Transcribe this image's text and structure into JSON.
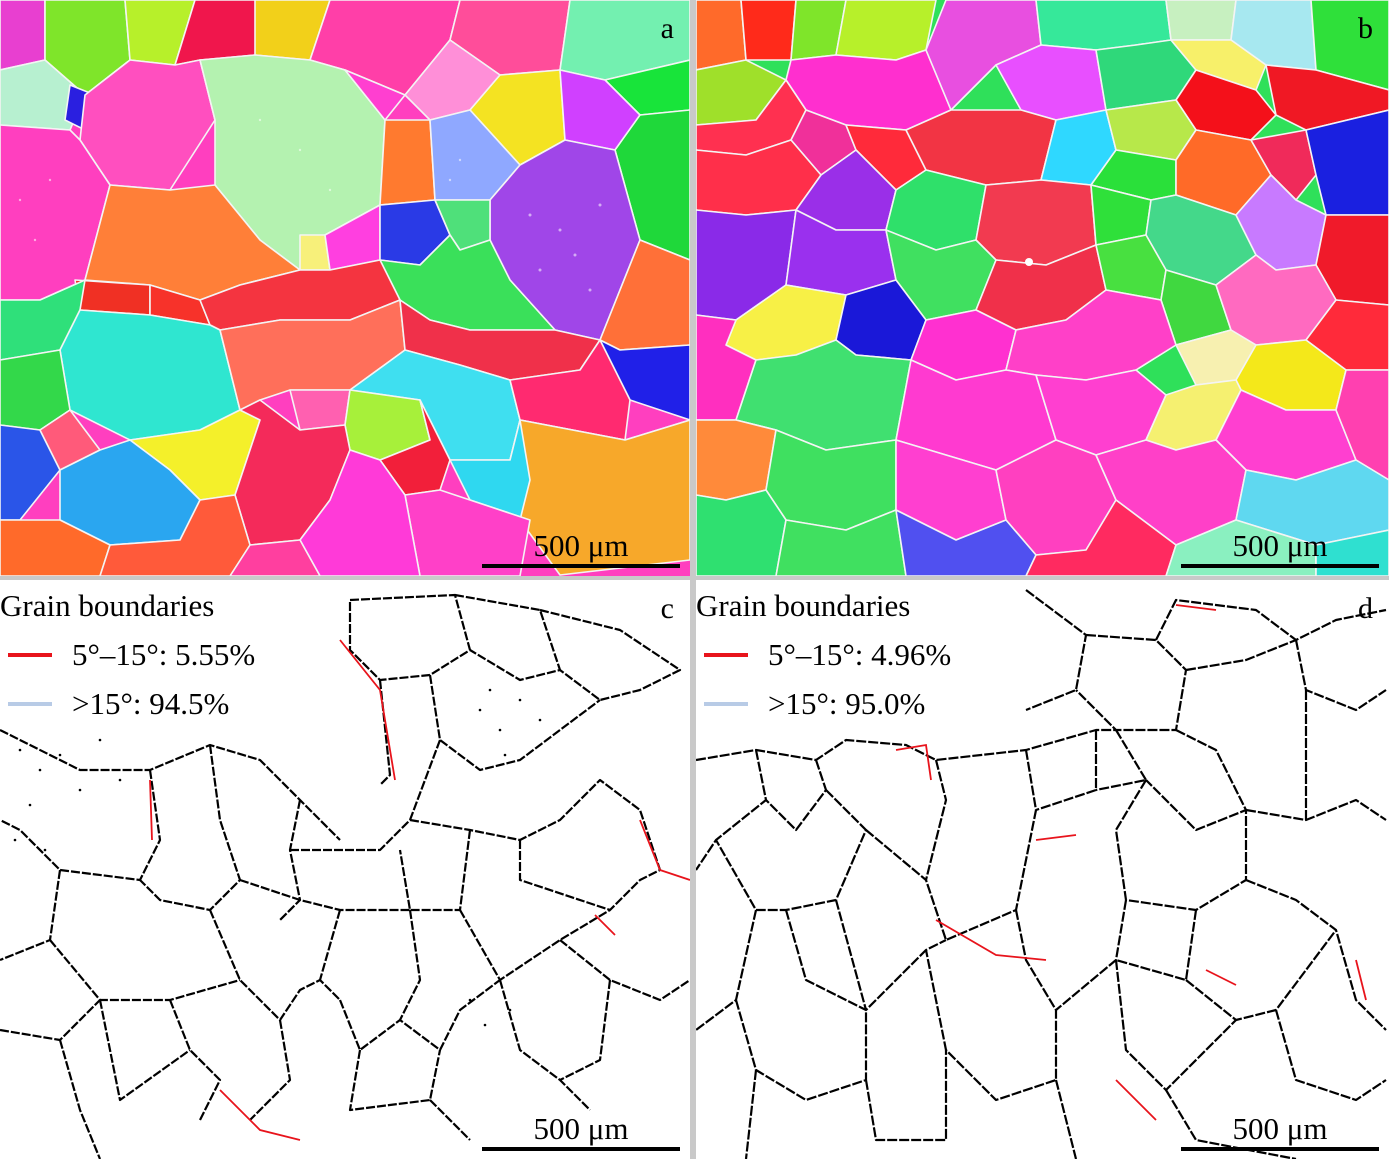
{
  "panels": {
    "a": {
      "letter": "a",
      "scale_bar": "500 μm"
    },
    "b": {
      "letter": "b",
      "scale_bar": "500 μm"
    },
    "c": {
      "letter": "c",
      "scale_bar": "500 μm",
      "legend": {
        "title": "Grain boundaries",
        "low_angle": "5°–15°: 5.55%",
        "high_angle": ">15°: 94.5%"
      }
    },
    "d": {
      "letter": "d",
      "scale_bar": "500 μm",
      "legend": {
        "title": "Grain boundaries",
        "low_angle": "5°–15°: 4.96%",
        "high_angle": ">15°: 95.0%"
      }
    }
  },
  "colors": {
    "low_angle_boundary": "#e8141c",
    "high_angle_boundary": "#b8cbe6",
    "boundary_line": "#000000"
  }
}
